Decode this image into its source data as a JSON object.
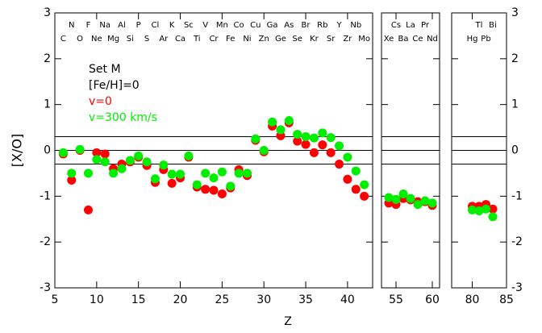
{
  "chart_data": [
    {
      "type": "scatter",
      "ylabel": "[X/O]",
      "annotations": [
        "Set M",
        "[Fe/H]=0"
      ],
      "x": [
        6,
        7,
        8,
        9,
        10,
        11,
        12,
        13,
        14,
        15,
        16,
        17,
        18,
        19,
        20,
        21,
        22,
        23,
        24,
        25,
        26,
        27,
        28,
        29,
        30,
        31,
        32,
        33,
        34,
        35,
        36,
        37,
        38,
        39,
        40,
        41,
        42
      ],
      "labels": [
        "C",
        "N",
        "O",
        "F",
        "Ne",
        "Na",
        "Mg",
        "Al",
        "Si",
        "P",
        "S",
        "Cl",
        "Ar",
        "K",
        "Ca",
        "Sc",
        "Ti",
        "V",
        "Cr",
        "Mn",
        "Fe",
        "Co",
        "Ni",
        "Cu",
        "Zn",
        "Ga",
        "Ge",
        "As",
        "Se",
        "Br",
        "Kr",
        "Rb",
        "Sr",
        "Y",
        "Zr",
        "Nb",
        "Mo"
      ],
      "series": [
        {
          "name": "v=0",
          "color": "#ff0000",
          "values": [
            -0.08,
            -0.65,
            0,
            -1.3,
            -0.05,
            -0.08,
            -0.4,
            -0.3,
            -0.25,
            -0.15,
            -0.33,
            -0.7,
            -0.42,
            -0.72,
            -0.6,
            -0.15,
            -0.8,
            -0.85,
            -0.87,
            -0.95,
            -0.82,
            -0.42,
            -0.55,
            0.22,
            -0.03,
            0.53,
            0.32,
            0.6,
            0.2,
            0.13,
            -0.05,
            0.12,
            -0.05,
            -0.3,
            -0.63,
            -0.85,
            -1.0
          ]
        },
        {
          "name": "v=300 km/s",
          "color": "#00ee00",
          "values": [
            -0.05,
            -0.5,
            0.02,
            -0.5,
            -0.2,
            -0.25,
            -0.5,
            -0.4,
            -0.22,
            -0.12,
            -0.25,
            -0.62,
            -0.32,
            -0.52,
            -0.52,
            -0.12,
            -0.75,
            -0.5,
            -0.6,
            -0.47,
            -0.78,
            -0.5,
            -0.5,
            0.25,
            0,
            0.62,
            0.45,
            0.65,
            0.35,
            0.3,
            0.27,
            0.38,
            0.28,
            0.1,
            -0.15,
            -0.45,
            -0.75
          ]
        }
      ],
      "hlines": [
        0.3,
        0,
        -0.3
      ],
      "xlim": [
        5,
        43
      ],
      "xticks": [
        5,
        10,
        15,
        20,
        25,
        30,
        35,
        40
      ],
      "ylim": [
        -3,
        3
      ],
      "yticks": [
        -3,
        -2,
        -1,
        0,
        1,
        2,
        3
      ]
    },
    {
      "type": "scatter",
      "xlabel": "Z",
      "x": [
        54,
        55,
        56,
        57,
        58,
        59,
        60
      ],
      "labels": [
        "Xe",
        "Cs",
        "Ba",
        "La",
        "Ce",
        "Pr",
        "Nd"
      ],
      "series": [
        {
          "color": "#ff0000",
          "values": [
            -1.15,
            -1.18,
            -1.05,
            -1.08,
            -1.12,
            -1.12,
            -1.2
          ]
        },
        {
          "color": "#00ee00",
          "values": [
            -1.03,
            -1.07,
            -0.95,
            -1.05,
            -1.18,
            -1.1,
            -1.15
          ]
        }
      ],
      "hlines": [
        0.3,
        0,
        -0.3
      ],
      "xlim": [
        53,
        61
      ],
      "xticks": [
        55,
        60
      ],
      "ylim": [
        -3,
        3
      ],
      "yticks": [
        -3,
        -2,
        -1,
        0,
        1,
        2,
        3
      ]
    },
    {
      "type": "scatter",
      "x": [
        80,
        81,
        82,
        83
      ],
      "labels": [
        "Hg",
        "Tl",
        "Pb",
        "Bi"
      ],
      "series": [
        {
          "color": "#ff0000",
          "values": [
            -1.22,
            -1.22,
            -1.18,
            -1.28
          ]
        },
        {
          "color": "#00ee00",
          "values": [
            -1.3,
            -1.32,
            -1.28,
            -1.45
          ]
        }
      ],
      "hlines": [
        0.3,
        0,
        -0.3
      ],
      "xlim": [
        77,
        85
      ],
      "xticks": [
        80,
        85
      ],
      "ylim": [
        -3,
        3
      ],
      "yticks": [
        -3,
        -2,
        -1,
        0,
        1,
        2,
        3
      ]
    }
  ]
}
